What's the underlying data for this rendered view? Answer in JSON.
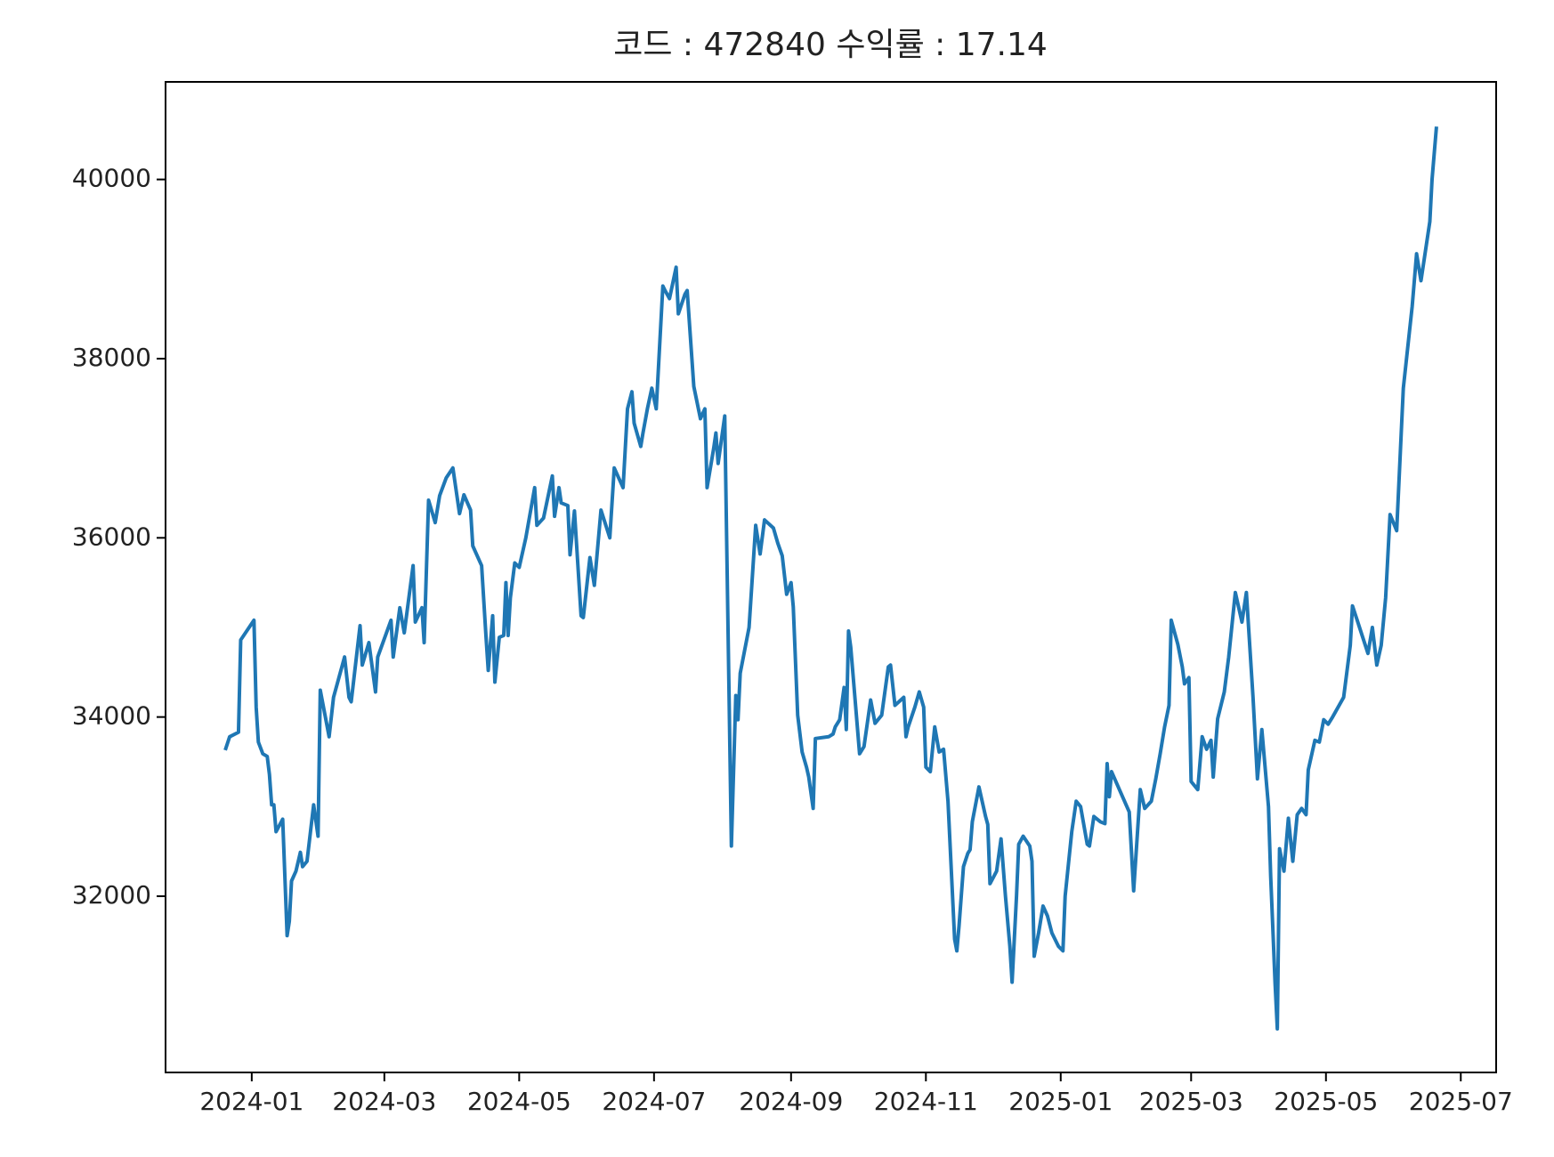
{
  "chart_data": {
    "type": "line",
    "title": "코드 : 472840 수익률 : 17.14",
    "x": [
      "2023-12-20",
      "2023-12-22",
      "2023-12-26",
      "2023-12-27",
      "2024-01-02",
      "2024-01-03",
      "2024-01-04",
      "2024-01-06",
      "2024-01-08",
      "2024-01-09",
      "2024-01-10",
      "2024-01-11",
      "2024-01-12",
      "2024-01-15",
      "2024-01-17",
      "2024-01-18",
      "2024-01-19",
      "2024-01-21",
      "2024-01-23",
      "2024-01-24",
      "2024-01-26",
      "2024-01-29",
      "2024-01-31",
      "2024-02-01",
      "2024-02-05",
      "2024-02-07",
      "2024-02-12",
      "2024-02-14",
      "2024-02-15",
      "2024-02-19",
      "2024-02-20",
      "2024-02-23",
      "2024-02-26",
      "2024-02-27",
      "2024-03-04",
      "2024-03-05",
      "2024-03-08",
      "2024-03-10",
      "2024-03-14",
      "2024-03-15",
      "2024-03-18",
      "2024-03-19",
      "2024-03-21",
      "2024-03-24",
      "2024-03-26",
      "2024-03-29",
      "2024-04-01",
      "2024-04-04",
      "2024-04-06",
      "2024-04-09",
      "2024-04-10",
      "2024-04-14",
      "2024-04-16",
      "2024-04-17",
      "2024-04-19",
      "2024-04-20",
      "2024-04-22",
      "2024-04-24",
      "2024-04-25",
      "2024-04-26",
      "2024-04-27",
      "2024-04-29",
      "2024-05-01",
      "2024-05-04",
      "2024-05-08",
      "2024-05-09",
      "2024-05-12",
      "2024-05-16",
      "2024-05-17",
      "2024-05-19",
      "2024-05-20",
      "2024-05-23",
      "2024-05-24",
      "2024-05-26",
      "2024-05-29",
      "2024-05-30",
      "2024-06-02",
      "2024-06-04",
      "2024-06-07",
      "2024-06-11",
      "2024-06-13",
      "2024-06-17",
      "2024-06-19",
      "2024-06-21",
      "2024-06-22",
      "2024-06-25",
      "2024-06-26",
      "2024-06-28",
      "2024-06-30",
      "2024-07-02",
      "2024-07-05",
      "2024-07-06",
      "2024-07-08",
      "2024-07-11",
      "2024-07-12",
      "2024-07-15",
      "2024-07-16",
      "2024-07-19",
      "2024-07-22",
      "2024-07-24",
      "2024-07-25",
      "2024-07-28",
      "2024-07-29",
      "2024-07-30",
      "2024-08-02",
      "2024-08-05",
      "2024-08-07",
      "2024-08-08",
      "2024-08-09",
      "2024-08-13",
      "2024-08-16",
      "2024-08-18",
      "2024-08-20",
      "2024-08-24",
      "2024-08-26",
      "2024-08-28",
      "2024-08-30",
      "2024-09-01",
      "2024-09-02",
      "2024-09-04",
      "2024-09-06",
      "2024-09-08",
      "2024-09-09",
      "2024-09-11",
      "2024-09-12",
      "2024-09-18",
      "2024-09-20",
      "2024-09-21",
      "2024-09-23",
      "2024-09-25",
      "2024-09-26",
      "2024-09-27",
      "2024-09-28",
      "2024-10-02",
      "2024-10-04",
      "2024-10-07",
      "2024-10-09",
      "2024-10-12",
      "2024-10-15",
      "2024-10-16",
      "2024-10-18",
      "2024-10-22",
      "2024-10-23",
      "2024-10-24",
      "2024-10-27",
      "2024-10-29",
      "2024-10-31",
      "2024-11-01",
      "2024-11-03",
      "2024-11-05",
      "2024-11-07",
      "2024-11-09",
      "2024-11-11",
      "2024-11-14",
      "2024-11-15",
      "2024-11-16",
      "2024-11-18",
      "2024-11-20",
      "2024-11-21",
      "2024-11-22",
      "2024-11-25",
      "2024-11-28",
      "2024-11-29",
      "2024-11-30",
      "2024-12-03",
      "2024-12-05",
      "2024-12-07",
      "2024-12-09",
      "2024-12-10",
      "2024-12-12",
      "2024-12-13",
      "2024-12-15",
      "2024-12-18",
      "2024-12-19",
      "2024-12-20",
      "2024-12-22",
      "2024-12-24",
      "2024-12-26",
      "2024-12-28",
      "2024-12-31",
      "2025-01-02",
      "2025-01-03",
      "2025-01-06",
      "2025-01-08",
      "2025-01-10",
      "2025-01-13",
      "2025-01-14",
      "2025-01-16",
      "2025-01-19",
      "2025-01-21",
      "2025-01-22",
      "2025-01-23",
      "2025-01-24",
      "2025-02-01",
      "2025-02-03",
      "2025-02-06",
      "2025-02-08",
      "2025-02-11",
      "2025-02-13",
      "2025-02-15",
      "2025-02-17",
      "2025-02-19",
      "2025-02-20",
      "2025-02-23",
      "2025-02-25",
      "2025-02-26",
      "2025-02-28",
      "2025-03-01",
      "2025-03-04",
      "2025-03-06",
      "2025-03-08",
      "2025-03-10",
      "2025-03-11",
      "2025-03-13",
      "2025-03-16",
      "2025-03-18",
      "2025-03-21",
      "2025-03-24",
      "2025-03-26",
      "2025-03-29",
      "2025-03-31",
      "2025-04-02",
      "2025-04-05",
      "2025-04-06",
      "2025-04-08",
      "2025-04-09",
      "2025-04-10",
      "2025-04-12",
      "2025-04-14",
      "2025-04-16",
      "2025-04-18",
      "2025-04-20",
      "2025-04-22",
      "2025-04-23",
      "2025-04-26",
      "2025-04-28",
      "2025-04-30",
      "2025-05-02",
      "2025-05-04",
      "2025-05-09",
      "2025-05-12",
      "2025-05-13",
      "2025-05-15",
      "2025-05-20",
      "2025-05-22",
      "2025-05-24",
      "2025-05-26",
      "2025-05-28",
      "2025-05-30",
      "2025-06-02",
      "2025-06-05",
      "2025-06-09",
      "2025-06-11",
      "2025-06-13",
      "2025-06-15",
      "2025-06-17",
      "2025-06-18",
      "2025-06-20"
    ],
    "values": [
      33630,
      33780,
      33830,
      34860,
      35080,
      34110,
      33720,
      33590,
      33560,
      33360,
      33020,
      33020,
      32720,
      32860,
      31560,
      31720,
      32170,
      32280,
      32490,
      32330,
      32390,
      33020,
      32670,
      34300,
      33780,
      34220,
      34670,
      34220,
      34170,
      35020,
      34580,
      34830,
      34280,
      34670,
      35080,
      34670,
      35220,
      34940,
      35690,
      35060,
      35220,
      34830,
      36420,
      36170,
      36470,
      36670,
      36780,
      36270,
      36480,
      36310,
      35910,
      35690,
      34890,
      34520,
      35130,
      34390,
      34890,
      34910,
      35500,
      34910,
      35330,
      35720,
      35670,
      36000,
      36560,
      36140,
      36220,
      36690,
      36240,
      36560,
      36390,
      36360,
      35810,
      36300,
      35130,
      35110,
      35780,
      35470,
      36310,
      36000,
      36780,
      36560,
      37440,
      37630,
      37280,
      37020,
      37170,
      37440,
      37670,
      37440,
      38810,
      38760,
      38670,
      39020,
      38500,
      38720,
      38760,
      37690,
      37330,
      37440,
      36560,
      37000,
      37170,
      36830,
      37360,
      32560,
      34240,
      33970,
      34490,
      35000,
      36140,
      35820,
      36200,
      36110,
      35940,
      35800,
      35370,
      35500,
      35230,
      34020,
      33610,
      33440,
      33330,
      32980,
      33760,
      33780,
      33810,
      33890,
      33970,
      34330,
      33860,
      34960,
      34780,
      33590,
      33670,
      34190,
      33930,
      34020,
      34560,
      34580,
      34130,
      34220,
      33780,
      33890,
      34110,
      34280,
      34110,
      33440,
      33390,
      33890,
      33610,
      33640,
      33060,
      31520,
      31390,
      31670,
      32330,
      32480,
      32520,
      32830,
      33220,
      32890,
      32800,
      32140,
      32280,
      32640,
      32000,
      31440,
      31040,
      32000,
      32580,
      32670,
      32560,
      32390,
      31330,
      31590,
      31890,
      31780,
      31590,
      31440,
      31390,
      32000,
      32720,
      33060,
      33000,
      32580,
      32560,
      32890,
      32830,
      32810,
      33480,
      33110,
      33390,
      32940,
      32060,
      33190,
      32980,
      33060,
      33310,
      33590,
      33890,
      34130,
      35080,
      34810,
      34560,
      34370,
      34440,
      33280,
      33190,
      33780,
      33640,
      33740,
      33330,
      33980,
      34280,
      34670,
      35390,
      35060,
      35390,
      34220,
      33310,
      33860,
      33000,
      32220,
      31020,
      30520,
      32530,
      32280,
      32870,
      32390,
      32910,
      32980,
      32910,
      33410,
      33740,
      33720,
      33970,
      33920,
      34000,
      34220,
      34800,
      35240,
      35090,
      34710,
      35000,
      34580,
      34800,
      35330,
      36260,
      36080,
      37670,
      38580,
      39170,
      38870,
      39200,
      39530,
      40000,
      40590
    ],
    "color": "#1f77b4",
    "xlim": [
      "2023-11-23",
      "2025-07-17"
    ],
    "xticks": [
      {
        "value": "2024-01-01",
        "label": "2024-01"
      },
      {
        "value": "2024-03-01",
        "label": "2024-03"
      },
      {
        "value": "2024-05-01",
        "label": "2024-05"
      },
      {
        "value": "2024-07-01",
        "label": "2024-07"
      },
      {
        "value": "2024-09-01",
        "label": "2024-09"
      },
      {
        "value": "2024-11-01",
        "label": "2024-11"
      },
      {
        "value": "2025-01-01",
        "label": "2025-01"
      },
      {
        "value": "2025-03-01",
        "label": "2025-03"
      },
      {
        "value": "2025-05-01",
        "label": "2025-05"
      },
      {
        "value": "2025-07-01",
        "label": "2025-07"
      }
    ],
    "ylim": [
      30033,
      41089
    ],
    "yticks": [
      32000,
      34000,
      36000,
      38000,
      40000
    ],
    "grid": false
  }
}
